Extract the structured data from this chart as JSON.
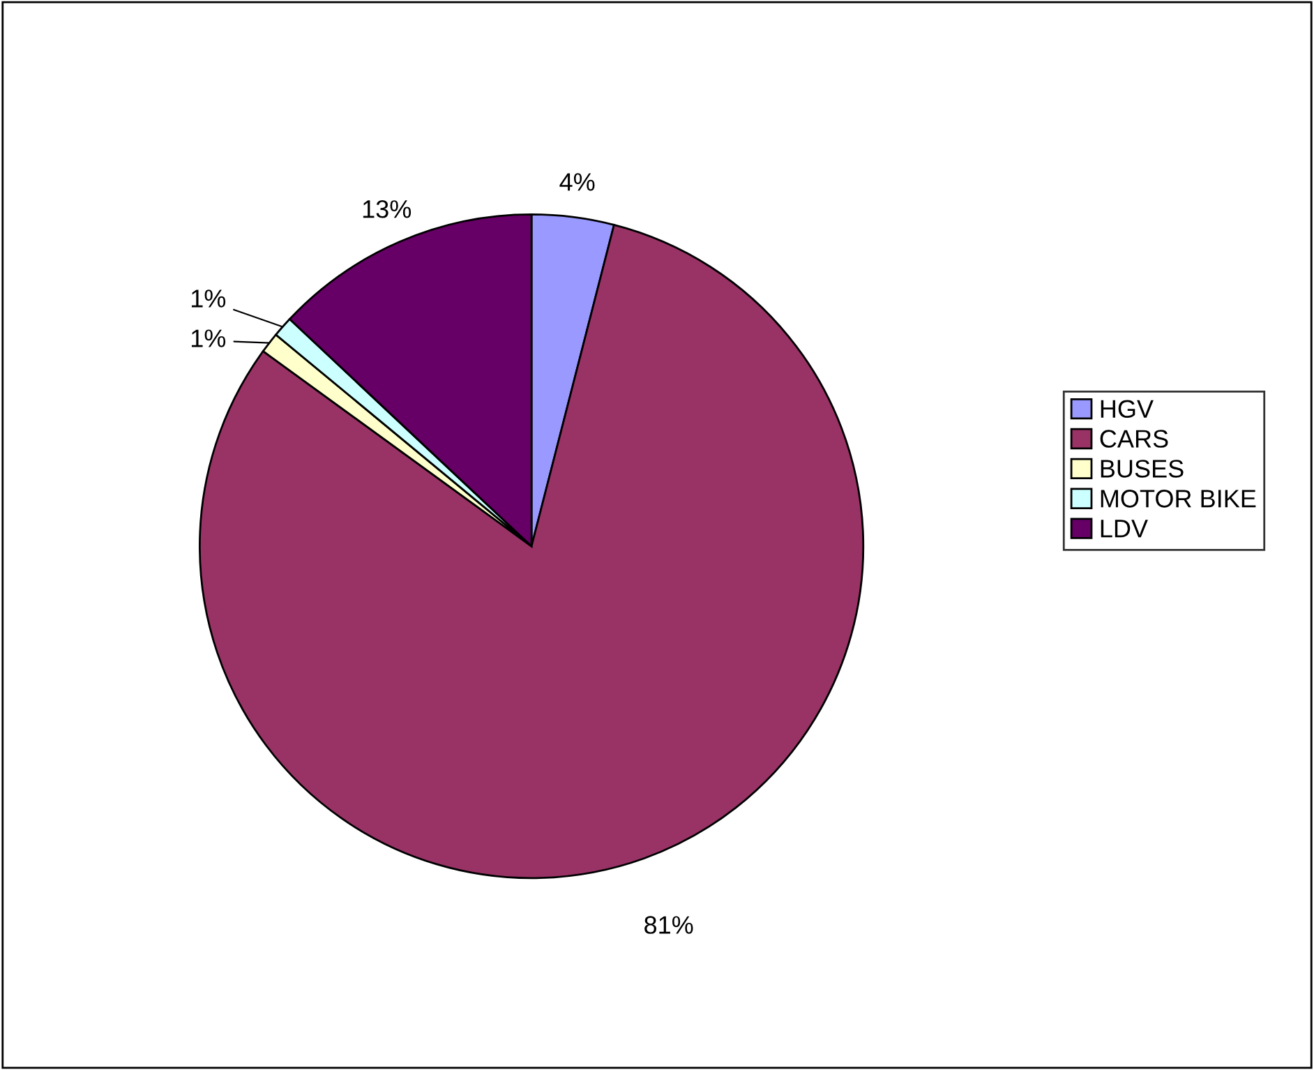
{
  "chart_data": {
    "type": "pie",
    "categories": [
      "HGV",
      "CARS",
      "BUSES",
      "MOTOR BIKE",
      "LDV"
    ],
    "values": [
      4,
      81,
      1,
      1,
      13
    ],
    "colors": [
      "#9999ff",
      "#993366",
      "#ffffcc",
      "#ccffff",
      "#660066"
    ],
    "value_labels": [
      "4%",
      "81%",
      "1%",
      "1%",
      "13%"
    ],
    "legend": "right"
  }
}
